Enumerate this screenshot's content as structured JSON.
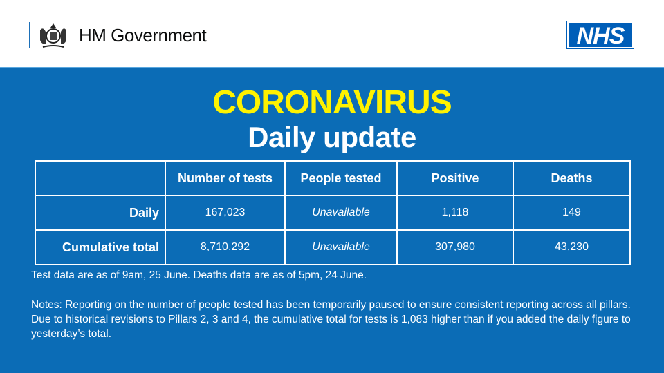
{
  "header": {
    "government": "HM Government",
    "nhs_logo": "NHS"
  },
  "title": {
    "line1": "CORONAVIRUS",
    "line2": "Daily update"
  },
  "colors": {
    "background": "#0b6cb6",
    "title": "#fff200",
    "nhs": "#005eb8"
  },
  "table": {
    "columns": [
      "",
      "Number of tests",
      "People tested",
      "Positive",
      "Deaths"
    ],
    "rows": [
      {
        "label": "Daily",
        "values": [
          "167,023",
          "Unavailable",
          "1,118",
          "149"
        ]
      },
      {
        "label": "Cumulative total",
        "values": [
          "8,710,292",
          "Unavailable",
          "307,980",
          "43,230"
        ]
      }
    ]
  },
  "notes": {
    "data_as_of": "Test data are as of 9am, 25 June. Deaths data are as of 5pm, 24 June.",
    "notes": "Notes: Reporting on the number of people tested has been temporarily paused to ensure consistent reporting across all pillars. Due to historical revisions to Pillars 2, 3 and 4, the cumulative total for tests is 1,083 higher than if you added the daily figure to yesterday’s total."
  }
}
